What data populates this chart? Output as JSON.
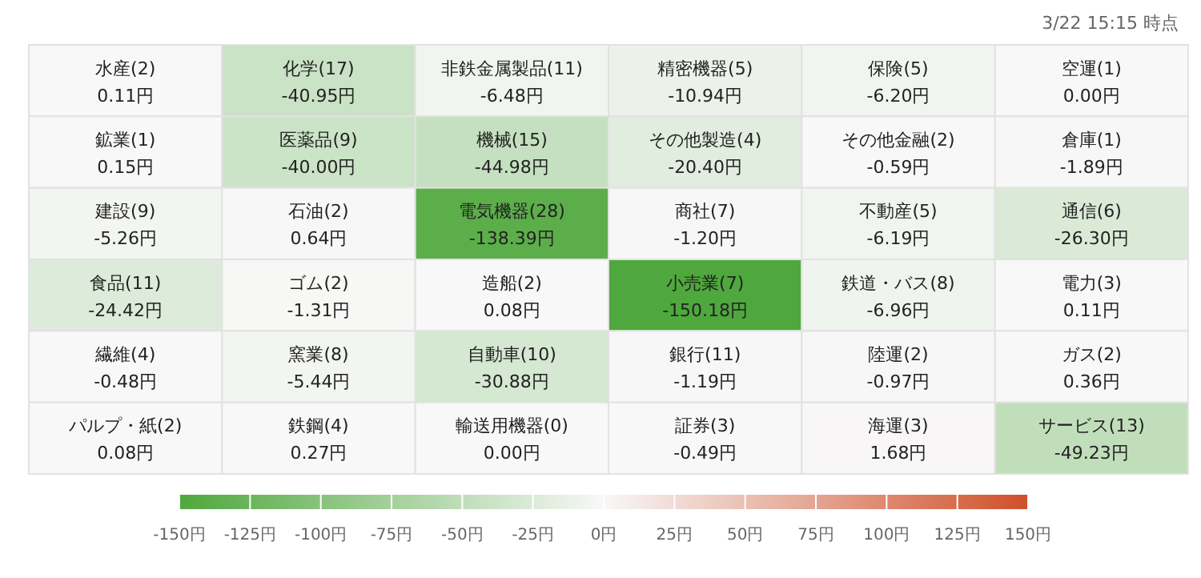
{
  "chart_data": {
    "type": "heatmap",
    "annotations": [
      "3/22 15:15 時点"
    ],
    "categories": [
      null,
      null,
      null,
      null,
      null,
      null
    ],
    "y_categories": [
      null,
      null,
      null,
      null,
      null,
      null
    ],
    "cells": [
      [
        0.11,
        -40.95,
        -6.48,
        -10.94,
        -6.2,
        0.0
      ],
      [
        0.15,
        -40.0,
        -44.98,
        -20.4,
        -0.59,
        -1.89
      ],
      [
        -5.26,
        0.64,
        -138.39,
        -1.2,
        -6.19,
        -26.3
      ],
      [
        -24.42,
        -1.31,
        0.08,
        -150.18,
        -6.96,
        0.11
      ],
      [
        -0.48,
        -5.44,
        -30.88,
        -1.19,
        -0.97,
        0.36
      ],
      [
        0.08,
        0.27,
        0.0,
        -0.49,
        1.68,
        -49.23
      ]
    ],
    "cell_labels": [
      [
        "水産(2)\n0.11円",
        "化学(17)\n-40.95円",
        "非鉄金属製品(11)\n-6.48円",
        "精密機器(5)\n-10.94円",
        "保険(5)\n-6.20円",
        "空運(1)\n0.00円"
      ],
      [
        "鉱業(1)\n0.15円",
        "医薬品(9)\n-40.00円",
        "機械(15)\n-44.98円",
        "その他製造(4)\n-20.40円",
        "その他金融(2)\n-0.59円",
        "倉庫(1)\n-1.89円"
      ],
      [
        "建設(9)\n-5.26円",
        "石油(2)\n0.64円",
        "電気機器(28)\n-138.39円",
        "商社(7)\n-1.20円",
        "不動産(5)\n-6.19円",
        "通信(6)\n-26.30円"
      ],
      [
        "食品(11)\n-24.42円",
        "ゴム(2)\n-1.31円",
        "造船(2)\n0.08円",
        "小売業(7)\n-150.18円",
        "鉄道・バス(8)\n-6.96円",
        "電力(3)\n0.11円"
      ],
      [
        "繊維(4)\n-0.48円",
        "窯業(8)\n-5.44円",
        "自動車(10)\n-30.88円",
        "銀行(11)\n-1.19円",
        "陸運(2)\n-0.97円",
        "ガス(2)\n0.36円"
      ],
      [
        "パルプ・紙(2)\n0.08円",
        "鉄鋼(4)\n0.27円",
        "輸送用機器(0)\n0.00円",
        "証券(3)\n-0.49円",
        "海運(3)\n1.68円",
        "サービス(13)\n-49.23円"
      ]
    ],
    "clim": [
      -150,
      150
    ],
    "cticks": [
      {
        "value": -150,
        "label": "-150円"
      },
      {
        "value": -125,
        "label": "-125円"
      },
      {
        "value": -100,
        "label": "-100円"
      },
      {
        "value": -75,
        "label": "-75円"
      },
      {
        "value": -50,
        "label": "-50円"
      },
      {
        "value": -25,
        "label": "-25円"
      },
      {
        "value": 0,
        "label": "0円"
      },
      {
        "value": 25,
        "label": "25円"
      },
      {
        "value": 50,
        "label": "50円"
      },
      {
        "value": 75,
        "label": "75円"
      },
      {
        "value": 100,
        "label": "100円"
      },
      {
        "value": 125,
        "label": "125円"
      },
      {
        "value": 150,
        "label": "150円"
      }
    ]
  }
}
